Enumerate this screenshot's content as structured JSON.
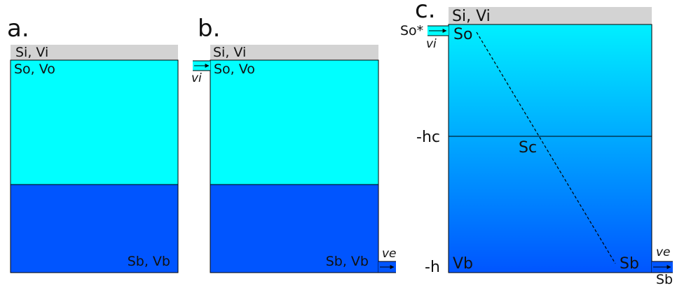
{
  "colors": {
    "upper_layer": "#00ffff",
    "lower_layer": "#0055ff",
    "surface_band": "#d3d3d3",
    "outline": "#000000"
  },
  "panel_a": {
    "label": "a.",
    "top_band": "Si, Vi",
    "upper_layer": "So, Vo",
    "lower_layer": "Sb, Vb"
  },
  "panel_b": {
    "label": "b.",
    "top_band": "Si, Vi",
    "upper_layer": "So, Vo",
    "lower_layer": "Sb, Vb",
    "inflow_velocity": "vi",
    "outflow_velocity": "ve"
  },
  "panel_c": {
    "label": "c.",
    "top_band": "Si, Vi",
    "inflow_salinity": "So*",
    "inflow_velocity": "vi",
    "top_salinity": "So",
    "mid_salinity": "Sc",
    "mid_depth": "-hc",
    "bottom_depth": "-h",
    "bottom_volume": "Vb",
    "bottom_salinity": "Sb",
    "outflow_velocity": "ve",
    "outflow_salinity": "Sb"
  }
}
